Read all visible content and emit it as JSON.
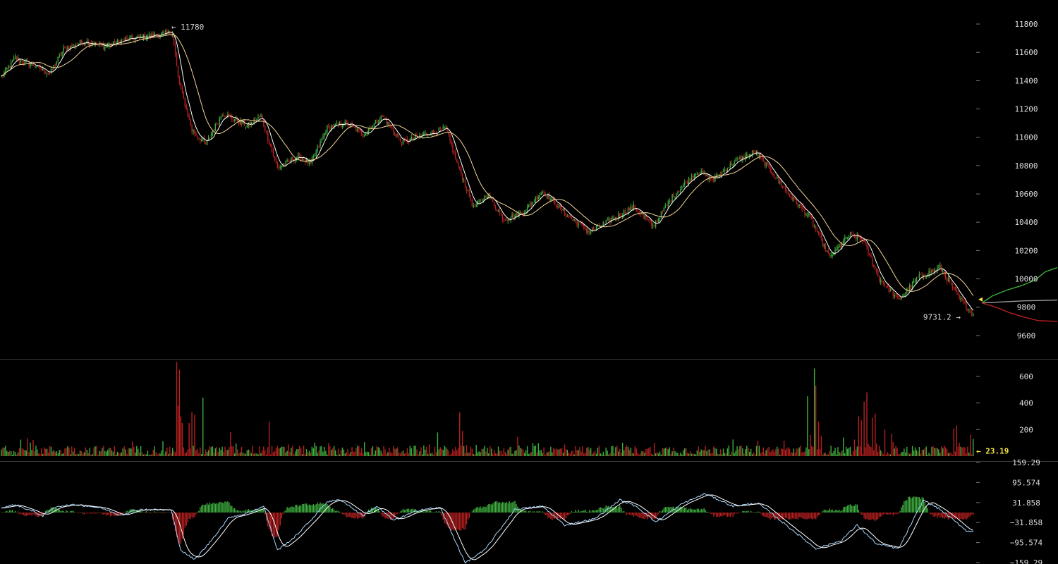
{
  "chart_data": {
    "type": "candlestick",
    "grid": false,
    "colors": {
      "up": "#3fae3f",
      "down": "#b52020",
      "ma_fast": "#ffffff",
      "ma_slow": "#f4d79a",
      "axis_text": "#dcdcdc",
      "current": "#f5e642",
      "divider": "#3a3a3a"
    },
    "price_panel": {
      "ylim": [
        9480,
        11870
      ],
      "ticks": [
        9600,
        9800,
        10000,
        10200,
        10400,
        10600,
        10800,
        11000,
        11200,
        11400,
        11600,
        11800
      ],
      "tick_labels": [
        "9600",
        "9800",
        "10000",
        "10200",
        "10400",
        "10600",
        "10800",
        "11000",
        "11200",
        "11400",
        "11600",
        "11800"
      ],
      "anchors": [
        [
          0,
          11430
        ],
        [
          10,
          11560
        ],
        [
          25,
          11500
        ],
        [
          35,
          11450
        ],
        [
          45,
          11620
        ],
        [
          60,
          11680
        ],
        [
          75,
          11640
        ],
        [
          90,
          11690
        ],
        [
          110,
          11720
        ],
        [
          124,
          11740
        ],
        [
          128,
          11420
        ],
        [
          138,
          11050
        ],
        [
          148,
          10950
        ],
        [
          160,
          11170
        ],
        [
          178,
          11080
        ],
        [
          188,
          11150
        ],
        [
          200,
          10780
        ],
        [
          215,
          10870
        ],
        [
          224,
          10810
        ],
        [
          236,
          11070
        ],
        [
          250,
          11100
        ],
        [
          262,
          11020
        ],
        [
          276,
          11150
        ],
        [
          290,
          10960
        ],
        [
          306,
          11020
        ],
        [
          322,
          11060
        ],
        [
          330,
          10820
        ],
        [
          342,
          10500
        ],
        [
          352,
          10600
        ],
        [
          364,
          10420
        ],
        [
          378,
          10470
        ],
        [
          392,
          10620
        ],
        [
          410,
          10450
        ],
        [
          426,
          10330
        ],
        [
          444,
          10430
        ],
        [
          458,
          10510
        ],
        [
          472,
          10370
        ],
        [
          486,
          10580
        ],
        [
          504,
          10760
        ],
        [
          516,
          10700
        ],
        [
          530,
          10820
        ],
        [
          546,
          10900
        ],
        [
          556,
          10780
        ],
        [
          570,
          10600
        ],
        [
          586,
          10430
        ],
        [
          600,
          10150
        ],
        [
          614,
          10310
        ],
        [
          624,
          10280
        ],
        [
          636,
          10000
        ],
        [
          650,
          9850
        ],
        [
          664,
          10010
        ],
        [
          680,
          10080
        ],
        [
          694,
          9860
        ],
        [
          704,
          9750
        ]
      ],
      "high_annotation": {
        "value": 11780,
        "label": "11780"
      },
      "low_annotation": {
        "value": 9731.2,
        "label": "9731.2"
      },
      "current_price": 9825,
      "forecast": {
        "upper": [
          [
            0,
            9830
          ],
          [
            15,
            9880
          ],
          [
            35,
            9920
          ],
          [
            55,
            9950
          ],
          [
            75,
            9990
          ],
          [
            90,
            10050
          ],
          [
            107,
            10080
          ]
        ],
        "mid": [
          [
            0,
            9830
          ],
          [
            60,
            9845
          ],
          [
            107,
            9850
          ]
        ],
        "lower": [
          [
            0,
            9830
          ],
          [
            20,
            9800
          ],
          [
            40,
            9760
          ],
          [
            60,
            9730
          ],
          [
            80,
            9705
          ],
          [
            107,
            9700
          ]
        ]
      }
    },
    "volume_panel": {
      "ylim": [
        0,
        700
      ],
      "ticks": [
        200,
        400,
        600
      ],
      "tick_labels": [
        "200",
        "400",
        "600"
      ],
      "current_value": 23.19,
      "current_label": "23.19",
      "spikes": [
        [
          127,
          710
        ],
        [
          128,
          380
        ],
        [
          129,
          650
        ],
        [
          130,
          300
        ],
        [
          131,
          250
        ],
        [
          136,
          250
        ],
        [
          138,
          330
        ],
        [
          140,
          310
        ],
        [
          146,
          440
        ],
        [
          166,
          180
        ],
        [
          194,
          260
        ],
        [
          332,
          330
        ],
        [
          334,
          190
        ],
        [
          584,
          450
        ],
        [
          586,
          160
        ],
        [
          589,
          660
        ],
        [
          590,
          530
        ],
        [
          592,
          260
        ],
        [
          594,
          150
        ],
        [
          621,
          300
        ],
        [
          623,
          270
        ],
        [
          625,
          410
        ],
        [
          627,
          480
        ],
        [
          631,
          290
        ],
        [
          633,
          320
        ],
        [
          640,
          200
        ],
        [
          645,
          170
        ],
        [
          690,
          210
        ],
        [
          692,
          230
        ],
        [
          694,
          100
        ]
      ]
    },
    "indicator_panel": {
      "ylim": [
        -159.29,
        159.29
      ],
      "ticks": [
        159.29,
        95.574,
        31.858,
        -31.858,
        -95.574,
        -159.29
      ],
      "tick_labels": [
        "159.29",
        "95.574",
        "31.858",
        "−31.858",
        "−95.574",
        "−159.29"
      ],
      "macd": [
        [
          0,
          15
        ],
        [
          10,
          25
        ],
        [
          22,
          5
        ],
        [
          30,
          -10
        ],
        [
          40,
          20
        ],
        [
          55,
          25
        ],
        [
          72,
          15
        ],
        [
          86,
          -8
        ],
        [
          100,
          10
        ],
        [
          123,
          8
        ],
        [
          130,
          -120
        ],
        [
          140,
          -150
        ],
        [
          150,
          -100
        ],
        [
          165,
          -15
        ],
        [
          176,
          -5
        ],
        [
          190,
          20
        ],
        [
          200,
          -120
        ],
        [
          212,
          -80
        ],
        [
          224,
          -25
        ],
        [
          236,
          35
        ],
        [
          246,
          40
        ],
        [
          262,
          -10
        ],
        [
          272,
          20
        ],
        [
          284,
          -25
        ],
        [
          304,
          10
        ],
        [
          318,
          15
        ],
        [
          336,
          -160
        ],
        [
          350,
          -120
        ],
        [
          372,
          10
        ],
        [
          392,
          20
        ],
        [
          408,
          -40
        ],
        [
          430,
          -20
        ],
        [
          448,
          40
        ],
        [
          460,
          20
        ],
        [
          474,
          -30
        ],
        [
          494,
          30
        ],
        [
          510,
          60
        ],
        [
          520,
          40
        ],
        [
          530,
          20
        ],
        [
          548,
          30
        ],
        [
          560,
          -10
        ],
        [
          590,
          -115
        ],
        [
          608,
          -90
        ],
        [
          620,
          -40
        ],
        [
          634,
          -100
        ],
        [
          650,
          -115
        ],
        [
          668,
          40
        ],
        [
          680,
          10
        ],
        [
          700,
          -60
        ]
      ]
    }
  }
}
